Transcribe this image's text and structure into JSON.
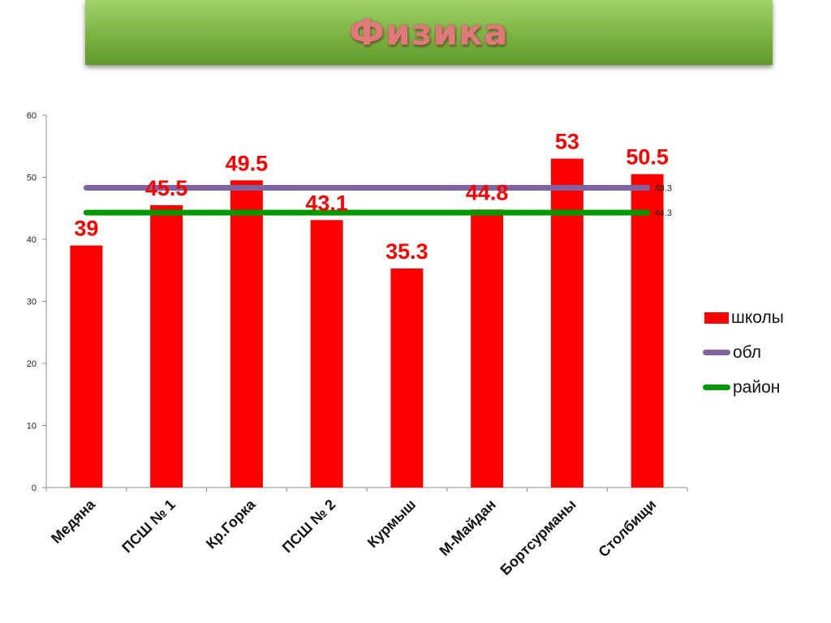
{
  "slide": {
    "title": "Физика"
  },
  "colors": {
    "bar": "#ff0000",
    "obl": "#8064a2",
    "rayon": "#009900",
    "bar_label": "#ff0000"
  },
  "chart_data": {
    "type": "bar",
    "categories": [
      "Медяна",
      "ПСШ № 1",
      "Кр.Горка",
      "ПСШ № 2",
      "Курмыш",
      "М-Майдан",
      "Бортсурманы",
      "Столбищи"
    ],
    "series": [
      {
        "name": "школы",
        "type": "bar",
        "values": [
          39,
          45.5,
          49.5,
          43.1,
          35.3,
          44.8,
          53,
          50.5
        ]
      },
      {
        "name": "обл",
        "type": "line",
        "values": [
          48.3,
          48.3,
          48.3,
          48.3,
          48.3,
          48.3,
          48.3,
          48.3
        ],
        "end_label": "48.3"
      },
      {
        "name": "район",
        "type": "line",
        "values": [
          44.3,
          44.3,
          44.3,
          44.3,
          44.3,
          44.3,
          44.3,
          44.3
        ],
        "end_label": "44.3"
      }
    ],
    "bar_labels": [
      "39",
      "45.5",
      "49.5",
      "43.1",
      "35.3",
      "44.8",
      "53",
      "50.5"
    ],
    "yticks": [
      "0",
      "10",
      "20",
      "30",
      "40",
      "50",
      "60"
    ],
    "ylim": [
      0,
      60
    ],
    "grid": false,
    "legend_position": "right"
  },
  "legend": {
    "items": [
      "школы",
      "обл",
      "район"
    ]
  }
}
